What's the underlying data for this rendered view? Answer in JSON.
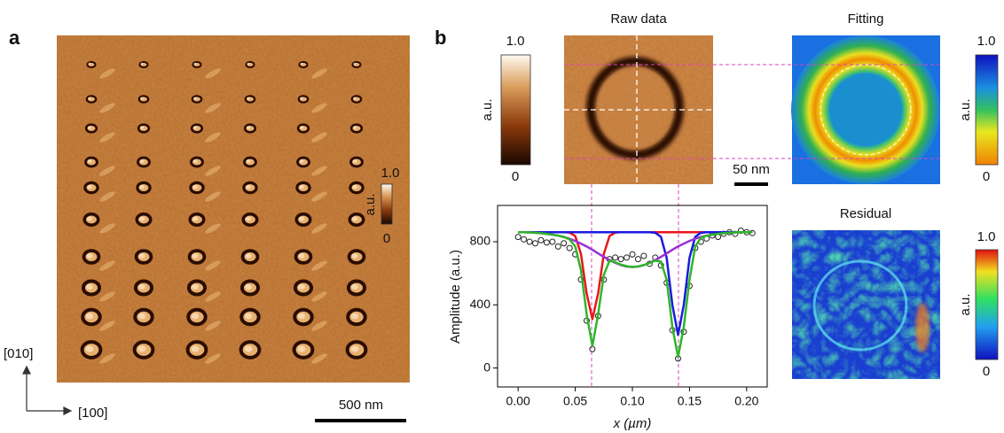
{
  "panel_a": {
    "label": "a",
    "colorbar": {
      "max": "1.0",
      "unit": "a.u.",
      "min": "0"
    },
    "scale_bar": "500 nm",
    "axes": {
      "vertical": "[010]",
      "horizontal": "[100]"
    }
  },
  "panel_b": {
    "label": "b",
    "raw": {
      "title": "Raw data",
      "colorbar": {
        "max": "1.0",
        "unit": "a.u.",
        "min": "0"
      },
      "scale_bar": "50 nm"
    },
    "fitting": {
      "title": "Fitting",
      "colorbar": {
        "max": "1.0",
        "unit": "a.u.",
        "min": "0"
      }
    },
    "residual": {
      "title": "Residual",
      "colorbar": {
        "max": "1.0",
        "unit": "a.u.",
        "min": "0"
      }
    }
  },
  "chart_data": {
    "type": "line",
    "x_label": "x (µm)",
    "y_label": "Amplitude (a.u.)",
    "x": [
      0,
      0.005,
      0.01,
      0.015,
      0.02,
      0.025,
      0.03,
      0.035,
      0.04,
      0.045,
      0.05,
      0.055,
      0.06,
      0.065,
      0.07,
      0.075,
      0.08,
      0.085,
      0.09,
      0.095,
      0.1,
      0.105,
      0.11,
      0.115,
      0.12,
      0.125,
      0.13,
      0.135,
      0.14,
      0.145,
      0.15,
      0.155,
      0.16,
      0.165,
      0.17,
      0.175,
      0.18,
      0.185,
      0.19,
      0.195,
      0.2,
      0.205
    ],
    "series": [
      {
        "mode": "markers",
        "color": "#222222",
        "values": [
          830,
          815,
          800,
          790,
          810,
          795,
          800,
          770,
          790,
          760,
          720,
          560,
          300,
          120,
          330,
          560,
          690,
          700,
          690,
          700,
          720,
          690,
          710,
          660,
          700,
          650,
          540,
          240,
          60,
          230,
          520,
          760,
          800,
          820,
          840,
          830,
          850,
          860,
          850,
          870,
          860,
          855
        ]
      },
      {
        "mode": "line",
        "color": "#e8161b",
        "values": [
          860,
          860,
          860,
          860,
          860,
          860,
          860,
          860,
          860,
          858,
          836,
          723,
          471,
          310,
          471,
          723,
          836,
          858,
          860,
          860,
          860,
          860,
          860,
          860,
          860,
          860,
          860,
          860,
          860,
          860,
          860,
          860,
          860,
          860,
          860,
          860,
          860,
          860,
          860,
          860,
          860,
          860
        ]
      },
      {
        "mode": "line",
        "color": "#1a1ae0",
        "values": [
          860,
          860,
          860,
          860,
          860,
          860,
          860,
          860,
          860,
          860,
          860,
          860,
          860,
          860,
          860,
          860,
          860,
          860,
          860,
          860,
          860,
          860,
          860,
          860,
          857,
          831,
          698,
          400,
          210,
          400,
          698,
          831,
          857,
          860,
          860,
          860,
          860,
          860,
          860,
          860,
          860,
          860
        ]
      },
      {
        "mode": "line",
        "color": "#9b2fd6",
        "values": [
          860,
          860,
          859,
          857,
          854,
          850,
          845,
          839,
          830,
          819,
          805,
          788,
          770,
          749,
          726,
          704,
          684,
          666,
          652,
          643,
          640,
          643,
          652,
          666,
          684,
          704,
          726,
          749,
          770,
          788,
          805,
          819,
          830,
          839,
          845,
          850,
          854,
          857,
          859,
          860,
          860,
          860
        ]
      },
      {
        "mode": "line",
        "color": "#2fb52a",
        "values": [
          860,
          860,
          859,
          857,
          854,
          850,
          845,
          839,
          830,
          815,
          770,
          620,
          340,
          140,
          340,
          590,
          680,
          670,
          655,
          645,
          640,
          643,
          652,
          665,
          680,
          675,
          560,
          260,
          70,
          260,
          560,
          770,
          825,
          838,
          845,
          850,
          854,
          857,
          859,
          860,
          860,
          860
        ]
      }
    ],
    "xlim": [
      -0.018,
      0.218
    ],
    "ylim": [
      -120,
      1030
    ],
    "xticks": [
      {
        "value": 0,
        "label": "0.00"
      },
      {
        "value": 0.05,
        "label": "0.05"
      },
      {
        "value": 0.1,
        "label": "0.10"
      },
      {
        "value": 0.15,
        "label": "0.15"
      },
      {
        "value": 0.2,
        "label": "0.20"
      }
    ],
    "yticks": [
      0,
      400,
      800
    ]
  }
}
